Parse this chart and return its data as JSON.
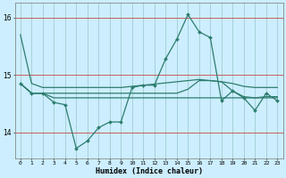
{
  "xlabel": "Humidex (Indice chaleur)",
  "background_color": "#cceeff",
  "line_color": "#2d7d6e",
  "red_line_color": "#cc4444",
  "yticks": [
    14,
    15,
    16
  ],
  "ylim": [
    13.55,
    16.25
  ],
  "xlim": [
    -0.5,
    23.5
  ],
  "line1_x": [
    0,
    1,
    2,
    3,
    4,
    5,
    6,
    7,
    8,
    9,
    10,
    11,
    12,
    13,
    14,
    15,
    16,
    17,
    18,
    19,
    20,
    21,
    22,
    23
  ],
  "line1_y": [
    15.7,
    14.85,
    14.78,
    14.78,
    14.78,
    14.78,
    14.78,
    14.78,
    14.78,
    14.78,
    14.8,
    14.82,
    14.84,
    14.86,
    14.88,
    14.9,
    14.92,
    14.9,
    14.88,
    14.85,
    14.8,
    14.78,
    14.78,
    14.78
  ],
  "line2_x": [
    0,
    1,
    2,
    3,
    4,
    5,
    6,
    7,
    8,
    9,
    10,
    11,
    12,
    13,
    14,
    15,
    16,
    17,
    18,
    19,
    20,
    21,
    22,
    23
  ],
  "line2_y": [
    14.85,
    14.68,
    14.68,
    14.68,
    14.68,
    14.68,
    14.68,
    14.68,
    14.68,
    14.68,
    14.68,
    14.68,
    14.68,
    14.68,
    14.68,
    14.75,
    14.9,
    14.9,
    14.88,
    14.72,
    14.62,
    14.6,
    14.62,
    14.62
  ],
  "line3_x": [
    0,
    1,
    2,
    3,
    4,
    5,
    6,
    7,
    8,
    9,
    10,
    11,
    12,
    13,
    14,
    15,
    16,
    17,
    18,
    19,
    20,
    21,
    22,
    23
  ],
  "line3_y": [
    14.85,
    14.68,
    14.68,
    14.52,
    14.48,
    13.72,
    13.85,
    14.08,
    14.18,
    14.18,
    14.78,
    14.82,
    14.82,
    15.28,
    15.62,
    16.05,
    15.75,
    15.65,
    14.55,
    14.72,
    14.6,
    14.38,
    14.68,
    14.55
  ],
  "line4_x": [
    0,
    1,
    2,
    3,
    4,
    5,
    6,
    7,
    8,
    9,
    10,
    11,
    12,
    13,
    14,
    15,
    16,
    17,
    18,
    19,
    20,
    21,
    22,
    23
  ],
  "line4_y": [
    14.85,
    14.68,
    14.68,
    14.6,
    14.6,
    14.6,
    14.6,
    14.6,
    14.6,
    14.6,
    14.6,
    14.6,
    14.6,
    14.6,
    14.6,
    14.6,
    14.6,
    14.6,
    14.6,
    14.6,
    14.6,
    14.6,
    14.6,
    14.6
  ]
}
